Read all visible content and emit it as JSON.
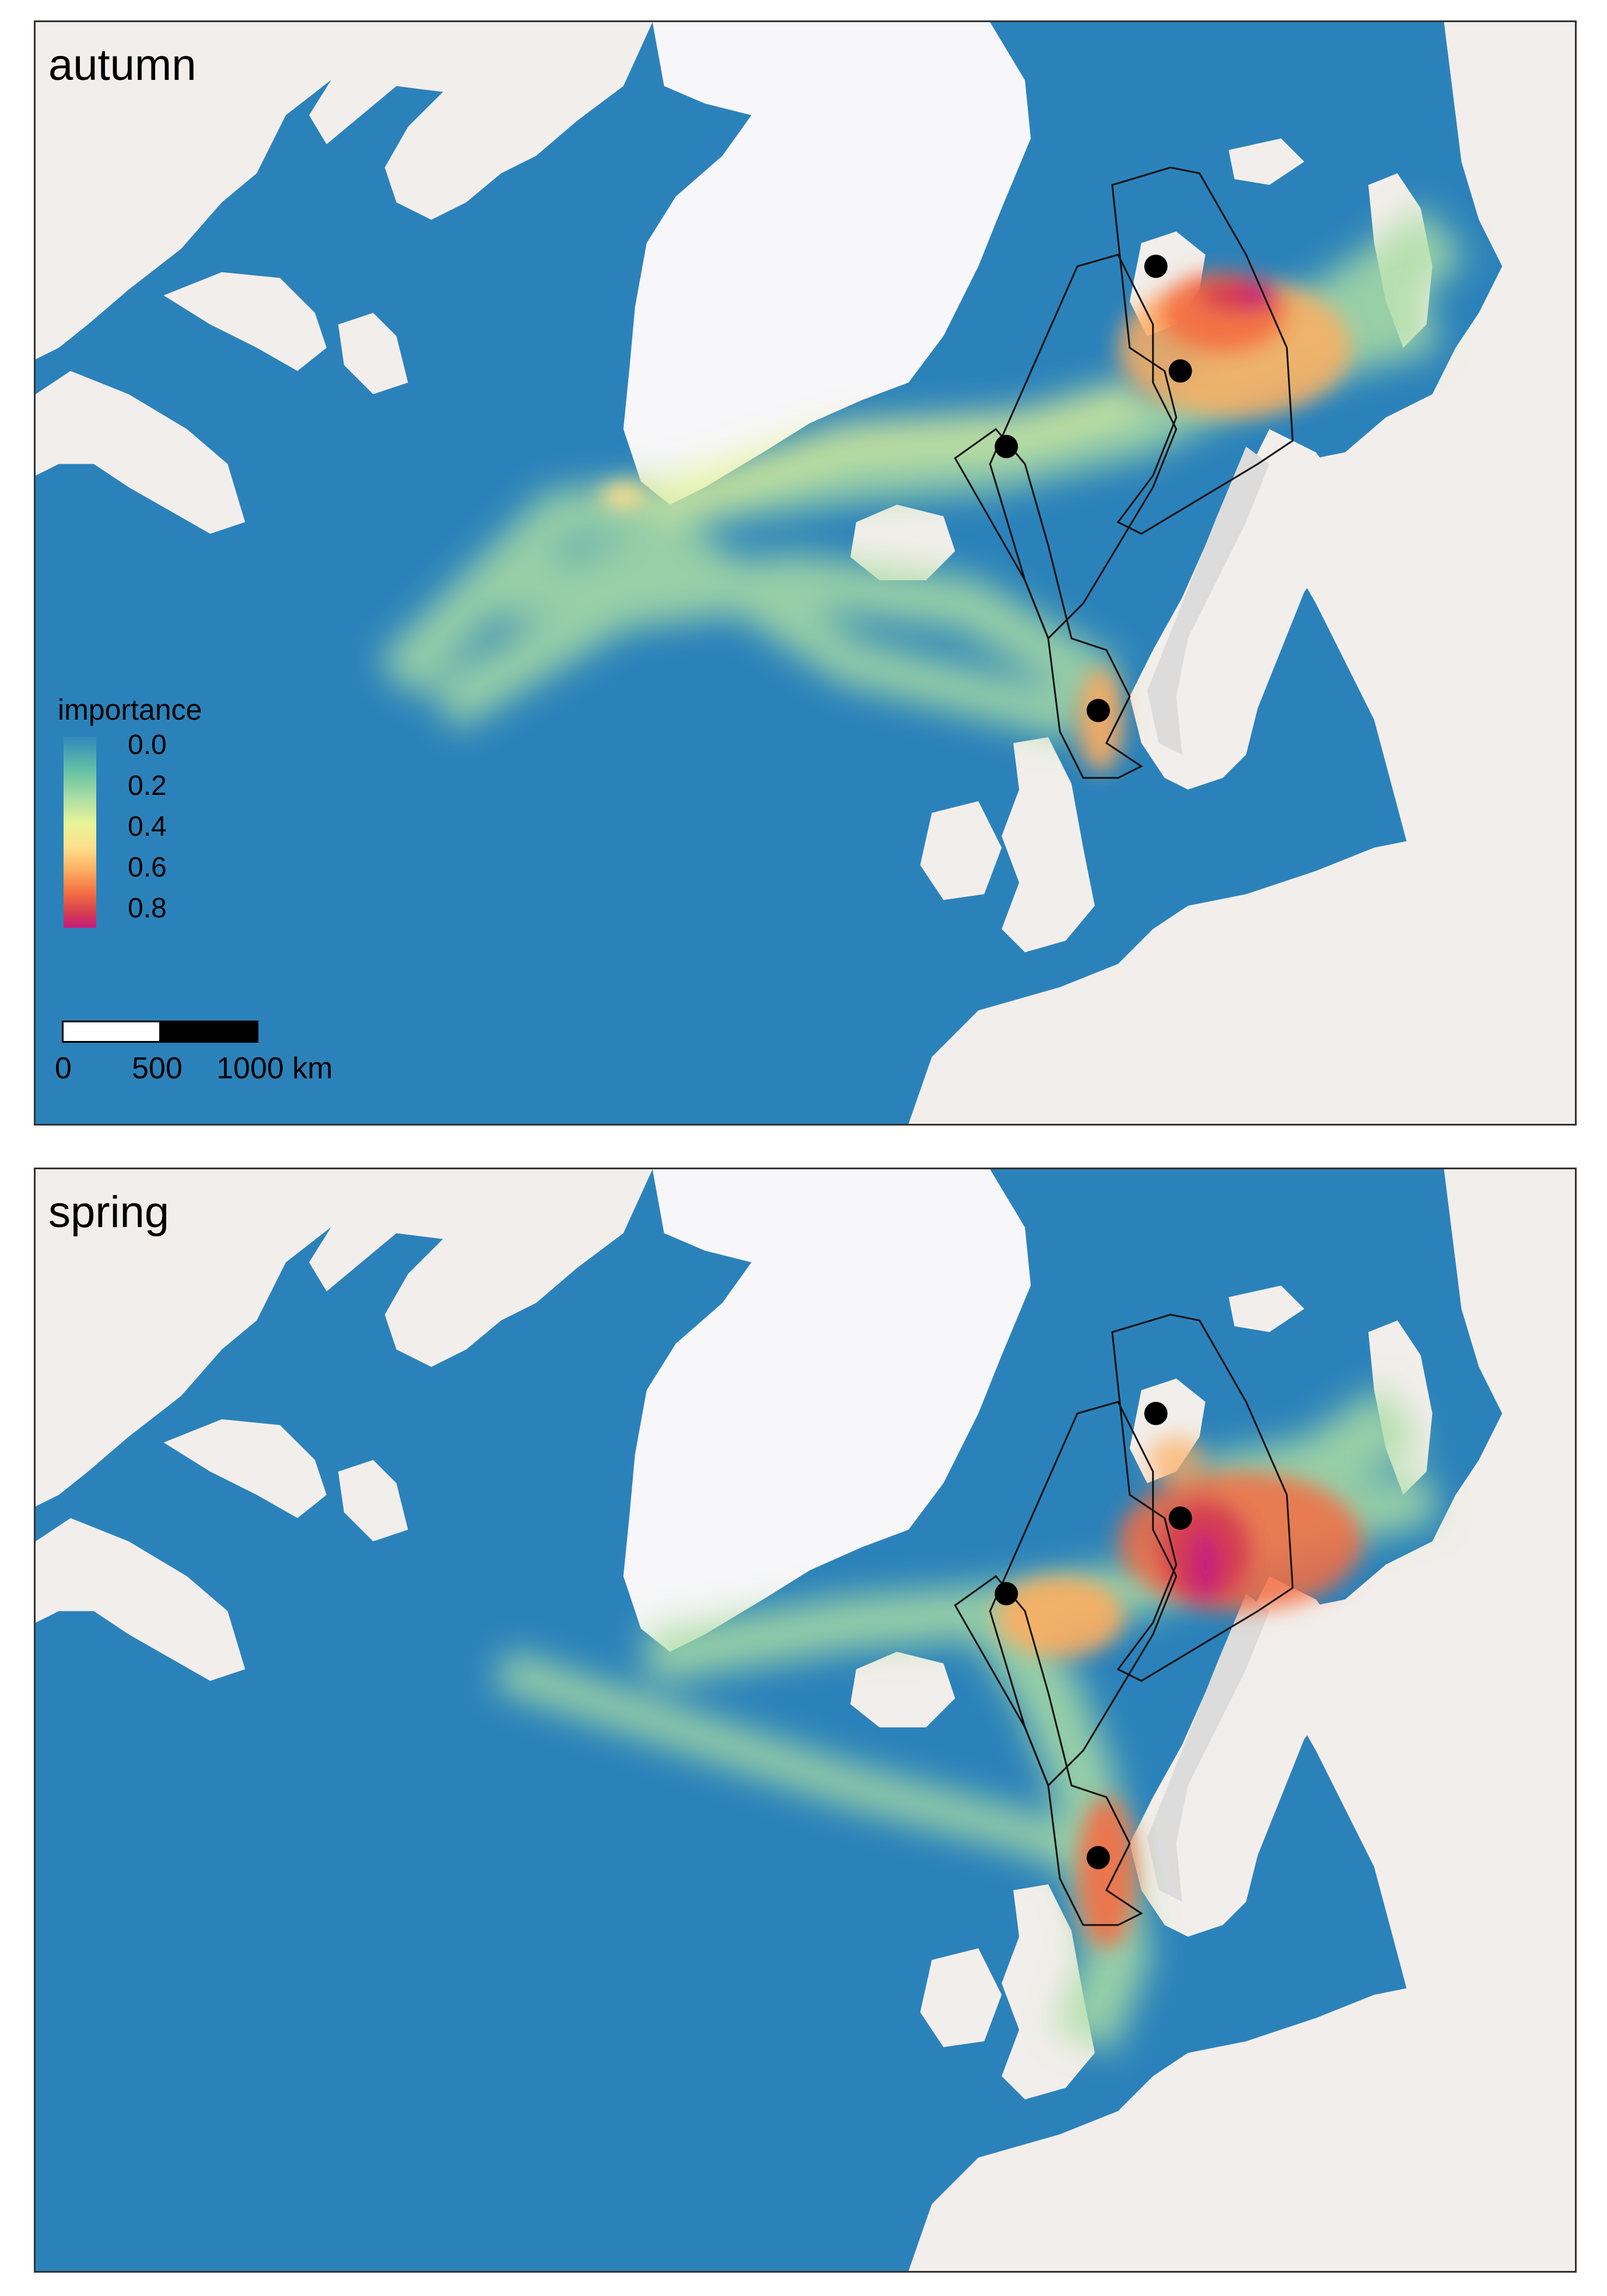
{
  "panels": [
    {
      "id": "autumn",
      "label": "autumn"
    },
    {
      "id": "spring",
      "label": "spring"
    }
  ],
  "legend": {
    "title": "importance",
    "ticks": [
      "0.0",
      "0.2",
      "0.4",
      "0.6",
      "0.8"
    ]
  },
  "scalebar": {
    "labels": [
      "0",
      "500",
      "1000 km"
    ]
  },
  "colors": {
    "ocean": "#2b82ba",
    "land": "#f2eeeb",
    "ice": "#f7f6f8",
    "low": "#abdda4",
    "mid": "#fee08b",
    "high": "#d53e4f",
    "max": "#c51b7d"
  }
}
